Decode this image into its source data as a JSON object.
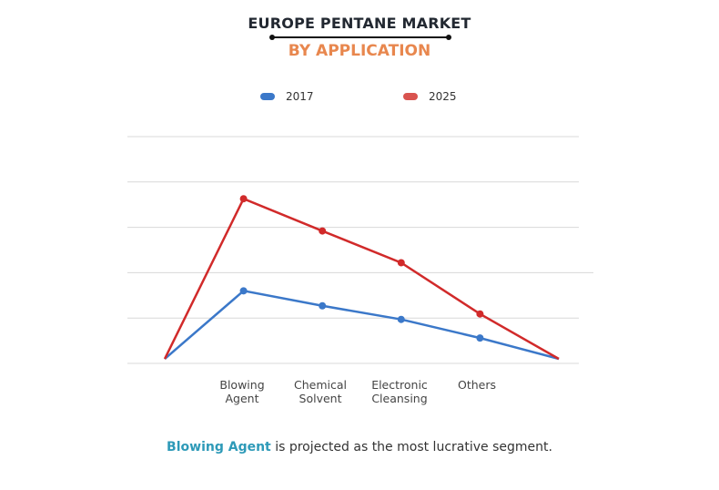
{
  "chart_data": {
    "type": "line",
    "title": "EUROPE PENTANE MARKET",
    "subtitle": "BY APPLICATION",
    "categories": [
      "",
      "Blowing Agent",
      "Chemical Solvent",
      "Electronic Cleansing",
      "Others",
      ""
    ],
    "tick_labels": [
      [
        "Blowing",
        "Agent"
      ],
      [
        "Chemical",
        "Solvent"
      ],
      [
        "Electronic",
        "Cleansing"
      ],
      [
        "Others",
        ""
      ]
    ],
    "series": [
      {
        "name": "2017",
        "color": "#3b78c9",
        "values": [
          0.1,
          1.6,
          1.27,
          0.97,
          0.56,
          0.1
        ]
      },
      {
        "name": "2025",
        "color": "#d12a2a",
        "values": [
          0.1,
          3.63,
          2.92,
          2.22,
          1.09,
          0.1
        ]
      }
    ],
    "ylim": [
      0,
      5
    ],
    "grid": true,
    "y_tick_labels_shown": false,
    "legend_placement": "top",
    "xlabel": "",
    "ylabel": ""
  },
  "legend": {
    "items": [
      {
        "label": "2017",
        "color": "#3b78c9"
      },
      {
        "label": "2025",
        "color": "#d9534f"
      }
    ]
  },
  "footer": {
    "highlight": "Blowing Agent",
    "text": " is projected as the most lucrative segment."
  }
}
